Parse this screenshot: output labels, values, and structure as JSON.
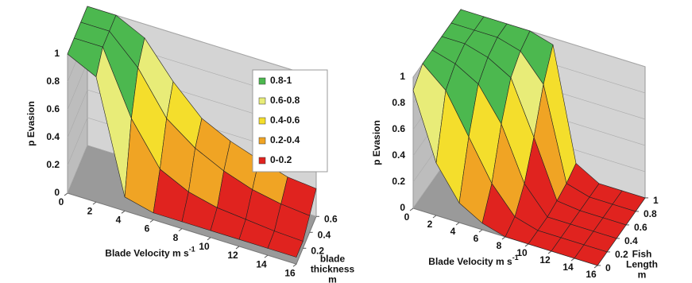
{
  "chart_data": [
    {
      "type": "surface",
      "y_label": "p Evasion",
      "x_label": "Blade Velocity  m s",
      "x_label_sup": "-1",
      "depth_label": [
        "blade",
        "thickness",
        "m"
      ],
      "x": [
        0,
        2,
        4,
        6,
        8,
        10,
        12,
        14,
        16
      ],
      "depth": [
        0,
        0.2,
        0.4,
        0.6
      ],
      "z": [
        [
          1,
          0.9,
          0.1,
          0.05,
          0.05,
          0.05,
          0.05,
          0.05,
          0.05
        ],
        [
          1,
          1,
          0.55,
          0.25,
          0.15,
          0.1,
          0.08,
          0.06,
          0.05
        ],
        [
          1,
          1,
          0.8,
          0.5,
          0.35,
          0.25,
          0.18,
          0.14,
          0.12
        ],
        [
          1,
          1,
          0.9,
          0.65,
          0.45,
          0.35,
          0.28,
          0.22,
          0.2
        ]
      ],
      "xlim": [
        0,
        16
      ],
      "depthlim": [
        0,
        0.6
      ],
      "zlim": [
        0,
        1
      ],
      "xticks": [
        0,
        2,
        4,
        6,
        8,
        10,
        12,
        14,
        16
      ],
      "depthticks": [
        0.2,
        0.4,
        0.6
      ],
      "zticks": [
        0,
        0.2,
        0.4,
        0.6,
        0.8,
        1
      ],
      "legend": [
        {
          "name": "0.8-1",
          "color": "#4cb84f"
        },
        {
          "name": "0.6-0.8",
          "color": "#e8ec78"
        },
        {
          "name": "0.4-0.6",
          "color": "#f4de2c"
        },
        {
          "name": "0.2-0.4",
          "color": "#f0a424"
        },
        {
          "name": "0-0.2",
          "color": "#e0231f"
        }
      ]
    },
    {
      "type": "surface",
      "y_label": "p Evasion",
      "x_label": "Blade Velocity  m s",
      "x_label_sup": "-1",
      "depth_label": [
        "Fish",
        "Length",
        "m"
      ],
      "x": [
        0,
        2,
        4,
        6,
        8,
        10,
        12,
        14,
        16
      ],
      "depth": [
        0,
        0.2,
        0.4,
        0.6,
        0.8,
        1
      ],
      "z": [
        [
          0.9,
          0.4,
          0.15,
          0.05,
          0,
          0,
          0,
          0,
          0
        ],
        [
          1,
          0.85,
          0.55,
          0.25,
          0.05,
          0,
          0,
          0,
          0
        ],
        [
          1,
          0.95,
          0.85,
          0.6,
          0.2,
          0,
          0,
          0,
          0
        ],
        [
          1,
          1,
          0.95,
          0.85,
          0.45,
          0.02,
          0,
          0,
          0
        ],
        [
          1,
          1,
          1,
          0.95,
          0.75,
          0.05,
          0,
          0,
          0
        ],
        [
          1,
          1,
          1,
          1,
          0.95,
          0.1,
          0,
          0,
          0
        ]
      ],
      "xlim": [
        0,
        16
      ],
      "depthlim": [
        0,
        1
      ],
      "zlim": [
        0,
        1
      ],
      "xticks": [
        0,
        2,
        4,
        6,
        8,
        10,
        12,
        14,
        16
      ],
      "depthticks": [
        0,
        0.2,
        0.4,
        0.6,
        0.8,
        1
      ],
      "zticks": [
        0,
        0.2,
        0.4,
        0.6,
        0.8,
        1
      ]
    }
  ]
}
